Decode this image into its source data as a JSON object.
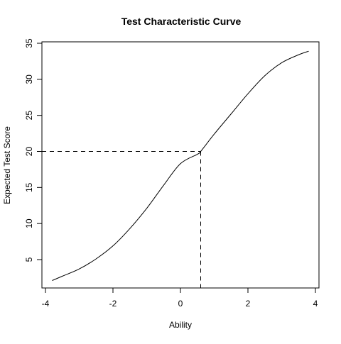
{
  "chart_data": {
    "type": "line",
    "title": "Test Characteristic Curve",
    "xlabel": "Ability",
    "ylabel": "Expected Test Score",
    "xlim": [
      -4,
      4
    ],
    "ylim": [
      1.5,
      35
    ],
    "x_ticks": [
      -4,
      -2,
      0,
      2,
      4
    ],
    "y_ticks": [
      5,
      10,
      15,
      20,
      25,
      30,
      35
    ],
    "x_tick_labels": [
      "-4",
      "-2",
      "0",
      "2",
      "4"
    ],
    "y_tick_labels": [
      "5",
      "10",
      "15",
      "20",
      "25",
      "30",
      "35"
    ],
    "grid": false,
    "series": [
      {
        "x": [
          -3.8,
          -3.5,
          -3.0,
          -2.5,
          -2.0,
          -1.5,
          -1.0,
          -0.5,
          0.0,
          0.5,
          0.6,
          1.0,
          1.5,
          2.0,
          2.5,
          3.0,
          3.5,
          3.8
        ],
        "y": [
          2.1,
          2.7,
          3.7,
          5.1,
          6.9,
          9.3,
          12.1,
          15.3,
          18.3,
          19.6,
          20.0,
          22.4,
          25.2,
          28.0,
          30.5,
          32.3,
          33.4,
          33.9
        ],
        "color": "#000000",
        "style": "solid"
      }
    ],
    "annotations": [
      {
        "type": "reference-lines",
        "x": 0.6,
        "y": 20,
        "style": "dashed",
        "color": "#000000"
      }
    ]
  }
}
